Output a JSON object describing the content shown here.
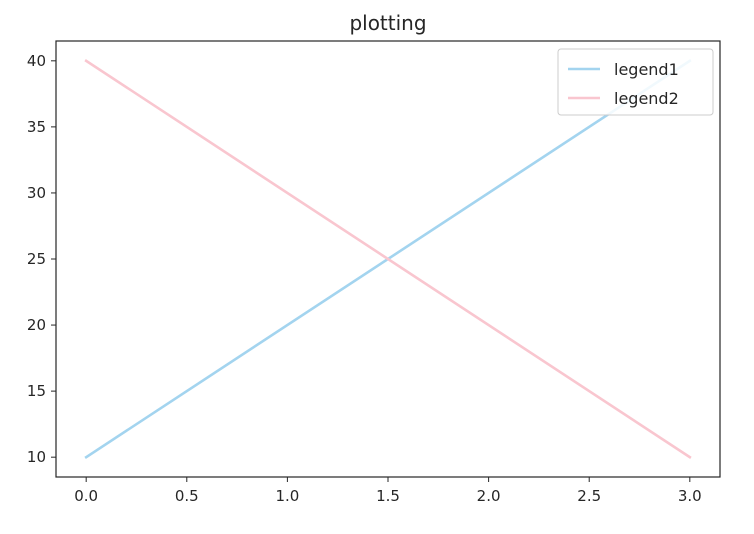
{
  "chart_data": {
    "type": "line",
    "title": "plotting",
    "xlabel": "",
    "ylabel": "",
    "xlim": [
      -0.15,
      3.15
    ],
    "ylim": [
      8.5,
      41.5
    ],
    "xticks": [
      0.0,
      0.5,
      1.0,
      1.5,
      2.0,
      2.5,
      3.0
    ],
    "xtick_labels": [
      "0.0",
      "0.5",
      "1.0",
      "1.5",
      "2.0",
      "2.5",
      "3.0"
    ],
    "yticks": [
      10,
      15,
      20,
      25,
      30,
      35,
      40
    ],
    "ytick_labels": [
      "10",
      "15",
      "20",
      "25",
      "30",
      "35",
      "40"
    ],
    "grid": false,
    "legend_position": "top-right",
    "series": [
      {
        "name": "legend1",
        "color": "#a3d4ef",
        "x": [
          0,
          3
        ],
        "y": [
          10,
          40
        ]
      },
      {
        "name": "legend2",
        "color": "#f9c6cf",
        "x": [
          0,
          3
        ],
        "y": [
          40,
          10
        ]
      }
    ]
  }
}
